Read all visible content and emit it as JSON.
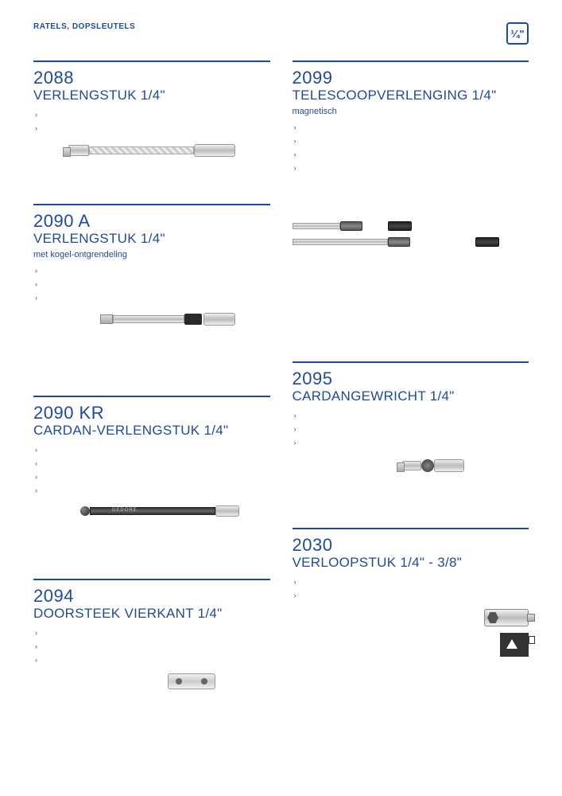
{
  "breadcrumb": "RATELS, DOPSLEUTELS",
  "badge": "¼\"",
  "left": [
    {
      "num": "2088",
      "title": "VERLENGSTUK 1/4\"",
      "sub": "",
      "bullets": [
        "›",
        "›"
      ],
      "img": "ext1",
      "spacer_after": 30
    },
    {
      "num": "2090 A",
      "title": "VERLENGSTUK 1/4\"",
      "sub": "met kogel-ontgrendeling",
      "bullets": [
        "›",
        "›",
        "›"
      ],
      "img": "ext2",
      "spacer_after": 60
    },
    {
      "num": "2090 KR",
      "title": "CARDAN-VERLENGSTUK 1/4\"",
      "sub": "",
      "bullets": [
        "›",
        "›",
        "›",
        "›"
      ],
      "img": "kr",
      "spacer_after": 50
    },
    {
      "num": "2094",
      "title": "DOORSTEEK VIERKANT 1/4\"",
      "sub": "",
      "bullets": [
        "›",
        "›",
        "›"
      ],
      "img": "sq",
      "spacer_after": 0
    }
  ],
  "right": [
    {
      "num": "2099",
      "title": "TELESCOOPVERLENGING 1/4\"",
      "sub": "magnetisch",
      "bullets": [
        "›",
        "›",
        "›",
        "›"
      ],
      "img": "tele",
      "spacer_before": 0,
      "spacer_after": 110
    },
    {
      "num": "2095",
      "title": "CARDANGEWRICHT 1/4\"",
      "sub": "",
      "bullets": [
        "›",
        "›",
        "›"
      ],
      "img": "cardan",
      "spacer_before": 0,
      "spacer_after": 40
    },
    {
      "num": "2030",
      "title": "VERLOOPSTUK 1/4\" - 3/8\"",
      "sub": "",
      "bullets": [
        "›",
        "›"
      ],
      "img": "adapter",
      "spacer_before": 0,
      "spacer_after": 0
    }
  ]
}
